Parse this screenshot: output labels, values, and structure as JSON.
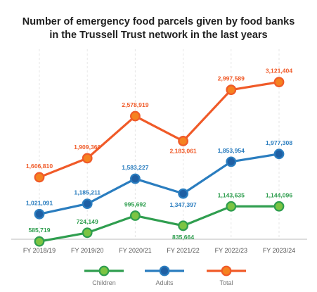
{
  "title": {
    "line1": "Number of emergency food parcels given by food banks",
    "line2": "in the Trussell Trust network in the last years"
  },
  "colors": {
    "children": "#2f9e4f",
    "children_fill": "#7cc443",
    "adults": "#2a7dbf",
    "adults_fill": "#1f5fa3",
    "total": "#f05a28",
    "total_fill": "#f58220",
    "axis": "#bbbbbb",
    "grid": "#e6e6e6"
  },
  "chart_data": {
    "type": "line",
    "categories": [
      "FY 2018/19",
      "FY 2019/20",
      "FY 2020/21",
      "FY 2021/22",
      "FY 2022/23",
      "FY 2023/24"
    ],
    "series": [
      {
        "key": "total",
        "name": "Total",
        "values": [
          1606810,
          1909360,
          2578919,
          2183061,
          2997589,
          3121404
        ],
        "labels": [
          "1,606,810",
          "1,909,360",
          "2,578,919",
          "2,183,061",
          "2,997,589",
          "3,121,404"
        ]
      },
      {
        "key": "adults",
        "name": "Adults",
        "values": [
          1021091,
          1185211,
          1583227,
          1347397,
          1853954,
          1977308
        ],
        "labels": [
          "1,021,091",
          "1,185,211",
          "1,583,227",
          "1,347,397",
          "1,853,954",
          "1,977,308"
        ]
      },
      {
        "key": "children",
        "name": "Children",
        "values": [
          585719,
          724149,
          995692,
          835664,
          1143635,
          1144096
        ],
        "labels": [
          "585,719",
          "724,149",
          "995,692",
          "835,664",
          "1,143,635",
          "1,144,096"
        ]
      }
    ],
    "legend_order": [
      "children",
      "adults",
      "total"
    ],
    "legend_position": "bottom",
    "ylim": [
      0,
      3500000
    ],
    "grid": "vertical",
    "markers": "circle"
  }
}
